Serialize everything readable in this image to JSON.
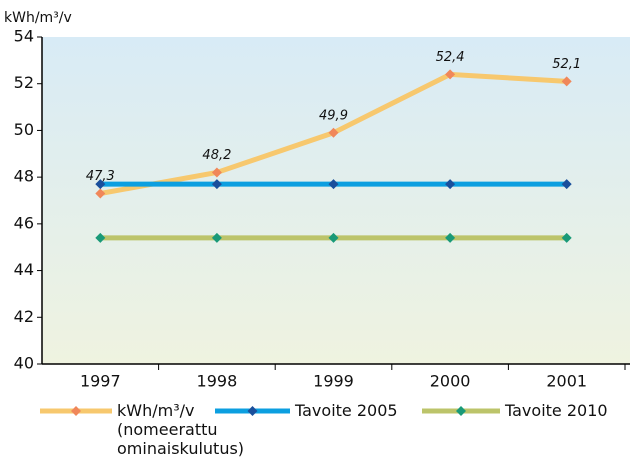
{
  "chart_data": {
    "type": "line",
    "y_label": "kWh/m³/v",
    "categories": [
      "1997",
      "1998",
      "1999",
      "2000",
      "2001"
    ],
    "series": [
      {
        "name": "kWh/m³/v (nomeerattu ominaiskulutus)",
        "color": "#f7c86e",
        "marker_color": "#f0875a",
        "values": [
          47.3,
          48.2,
          49.9,
          52.4,
          52.1
        ],
        "value_labels": [
          "47,3",
          "48,2",
          "49,9",
          "52,4",
          "52,1"
        ]
      },
      {
        "name": "Tavoite 2005",
        "color": "#0c9fe0",
        "marker_color": "#1a4f9c",
        "values": [
          47.7,
          47.7,
          47.7,
          47.7,
          47.7
        ]
      },
      {
        "name": "Tavoite 2010",
        "color": "#bcc46a",
        "marker_color": "#1a9a78",
        "values": [
          45.4,
          45.4,
          45.4,
          45.4,
          45.4
        ]
      }
    ],
    "ylim": [
      40,
      54
    ],
    "yticks": [
      40,
      42,
      44,
      46,
      48,
      50,
      52,
      54
    ],
    "grid": false
  }
}
